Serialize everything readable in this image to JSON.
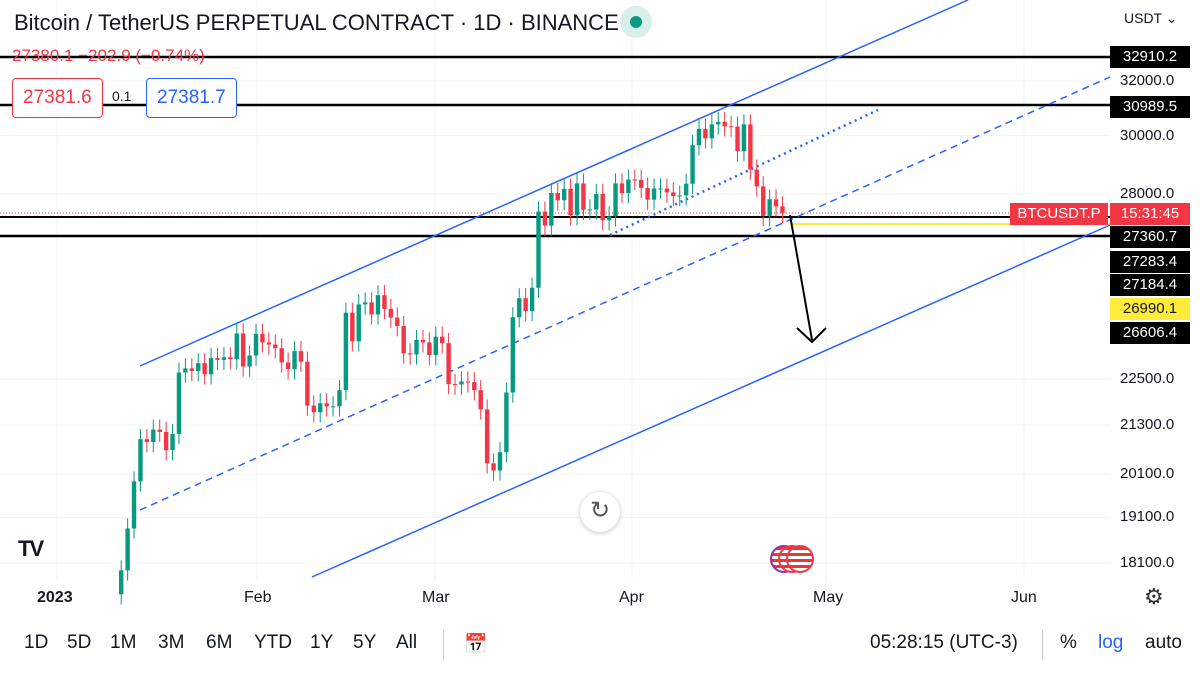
{
  "header": {
    "title": "Bitcoin / TetherUS PERPETUAL CONTRACT · 1D · BINANCE",
    "ohlc": "27380.1  −202.9 (−0.74%)",
    "sell": "27381.6",
    "spread": "0.1",
    "buy": "27381.7",
    "currency": "USDT ⌄"
  },
  "colors": {
    "up": "#089981",
    "down": "#f23645",
    "channel": "#2962ff",
    "level": "#000000",
    "yellow": "#ffeb3b"
  },
  "chart_data": {
    "type": "candlestick",
    "title": "Bitcoin / TetherUS PERPETUAL CONTRACT · 1D · BINANCE",
    "scale": "log",
    "start_date": "2023-01-11",
    "first_open": 17440,
    "closes": [
      17940,
      18850,
      19930,
      20950,
      20880,
      21190,
      21130,
      20680,
      21080,
      22670,
      22780,
      22710,
      22920,
      22620,
      23060,
      23010,
      23080,
      23030,
      23740,
      22830,
      23130,
      23730,
      23490,
      23430,
      23330,
      22940,
      22760,
      23250,
      22960,
      21800,
      21630,
      21860,
      21780,
      21780,
      22200,
      24330,
      23520,
      24570,
      24630,
      24280,
      24840,
      24440,
      24190,
      23950,
      23190,
      23160,
      23560,
      23490,
      23140,
      23650,
      23470,
      22360,
      22350,
      22430,
      22410,
      22200,
      21700,
      20360,
      20190,
      20630,
      22140,
      24200,
      24750,
      24380,
      25060,
      27420,
      26970,
      28030,
      27790,
      28170,
      27300,
      28350,
      27480,
      27490,
      28000,
      27140,
      27270,
      28350,
      28030,
      28480,
      28470,
      28200,
      27810,
      28180,
      28180,
      28050,
      27930,
      27950,
      28340,
      29660,
      30240,
      29900,
      30400,
      30490,
      30330,
      30320,
      29450,
      30400,
      28820,
      28250,
      27280,
      27820,
      27590,
      27380
    ],
    "y_ticks": [
      "32000.0",
      "30000.0",
      "28000.0",
      "22500.0",
      "21300.0",
      "20100.0",
      "19100.0",
      "18100.0"
    ],
    "x_ticks": [
      "2023",
      "Feb",
      "Mar",
      "Apr",
      "May",
      "Jun"
    ],
    "levels": [
      {
        "label": "32910.2",
        "style": "black"
      },
      {
        "label": "30989.5",
        "style": "black"
      },
      {
        "label": "27360.7",
        "style": "black"
      },
      {
        "label": "27283.4",
        "style": "black"
      },
      {
        "label": "27184.4",
        "style": "black"
      },
      {
        "label": "26990.1",
        "style": "yellow"
      },
      {
        "label": "26606.4",
        "style": "black"
      }
    ],
    "last_price": {
      "symbol": "BTCUSDT.P",
      "countdown": "15:31:45"
    }
  },
  "toolbar": {
    "ranges": [
      "1D",
      "5D",
      "1M",
      "3M",
      "6M",
      "YTD",
      "1Y",
      "5Y",
      "All"
    ],
    "time": "05:28:15 (UTC-3)",
    "percent": "%",
    "log": "log",
    "auto": "auto"
  }
}
